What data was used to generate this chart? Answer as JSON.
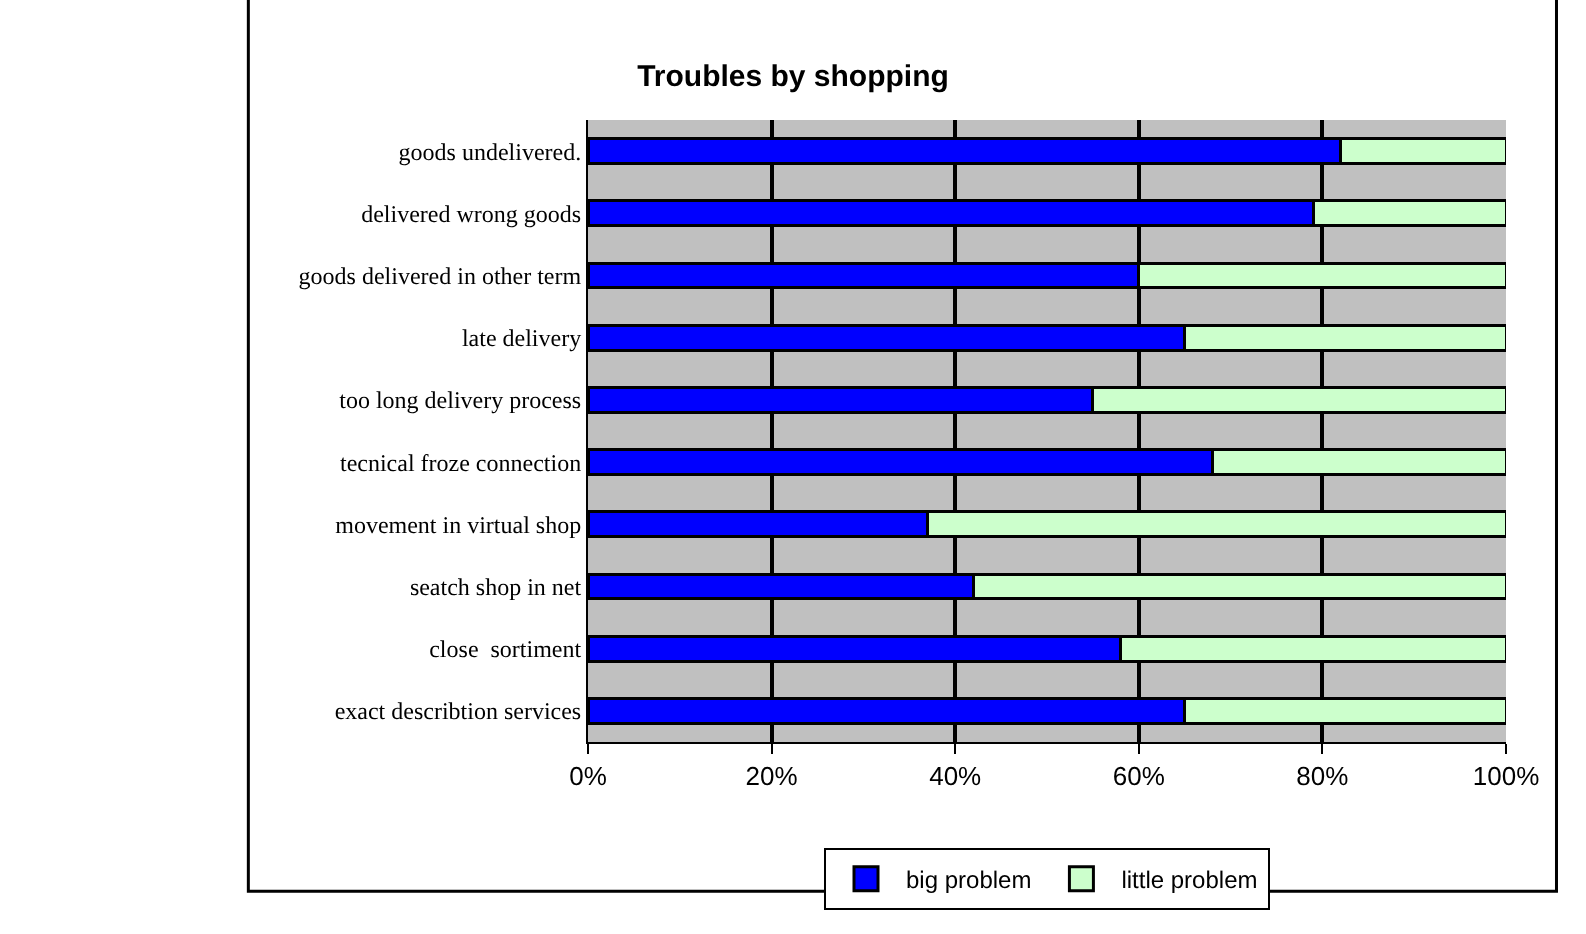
{
  "chart_data": {
    "type": "bar",
    "orientation": "horizontal",
    "stacked": true,
    "title": "Troubles by shopping",
    "categories": [
      "goods undelivered.",
      "delivered wrong goods",
      "goods delivered in other term",
      "late delivery",
      "too long delivery process",
      "tecnical froze connection",
      "movement in virtual shop",
      "seatch shop in net",
      "close  sortiment",
      "exact describtion services"
    ],
    "series": [
      {
        "name": "big problem",
        "color": "#0000ff",
        "values": [
          82,
          79,
          60,
          65,
          55,
          68,
          37,
          42,
          58,
          65
        ]
      },
      {
        "name": "little problem",
        "color": "#ccffcc",
        "values": [
          18,
          21,
          40,
          35,
          45,
          32,
          63,
          58,
          42,
          35
        ]
      }
    ],
    "xlim": [
      0,
      100
    ],
    "xticks": [
      {
        "value": 0,
        "label": "0%"
      },
      {
        "value": 20,
        "label": "20%"
      },
      {
        "value": 40,
        "label": "40%"
      },
      {
        "value": 60,
        "label": "60%"
      },
      {
        "value": 80,
        "label": "80%"
      },
      {
        "value": 100,
        "label": "100%"
      }
    ],
    "grid": "x",
    "legend": "bottom"
  }
}
